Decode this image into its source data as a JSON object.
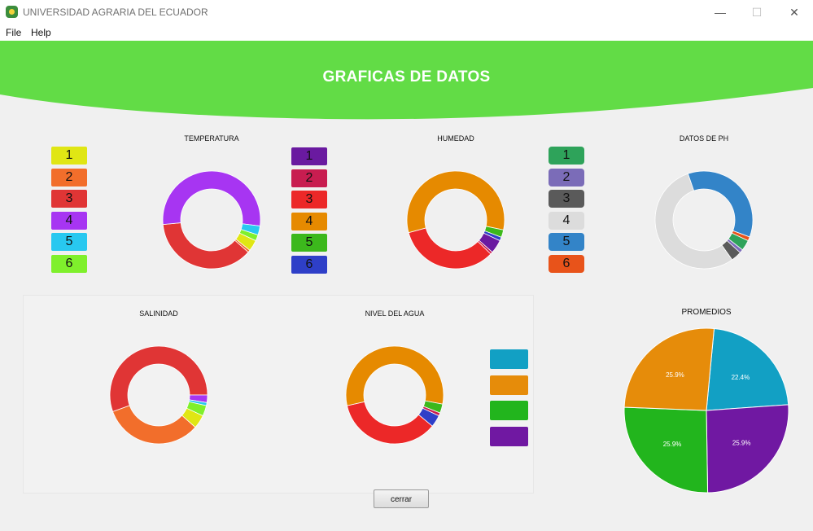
{
  "window": {
    "title": "UNIVERSIDAD AGRARIA DEL ECUADOR",
    "minimize": "—",
    "maximize": "☐",
    "close": "✕"
  },
  "menu": [
    "File",
    "Help"
  ],
  "header": {
    "title": "GRAFICAS DE DATOS",
    "accent": "#62dc46"
  },
  "charts": {
    "temperatura": {
      "title": "TEMPERATURA",
      "segments": [
        {
          "color": "#e0e614",
          "fraction": 0.037
        },
        {
          "color": "#f26e2b",
          "fraction": 0.008
        },
        {
          "color": "#e03535",
          "fraction": 0.37
        },
        {
          "color": "#a735f2",
          "fraction": 0.535
        },
        {
          "color": "#28c8f0",
          "fraction": 0.03
        },
        {
          "color": "#7ff02c",
          "fraction": 0.02
        }
      ]
    },
    "humedad": {
      "title": "HUMEDAD",
      "segments": [
        {
          "color": "#6a1aa0",
          "fraction": 0.045
        },
        {
          "color": "#c81d50",
          "fraction": 0.008
        },
        {
          "color": "#ec2828",
          "fraction": 0.335
        },
        {
          "color": "#e68a00",
          "fraction": 0.575
        },
        {
          "color": "#3cb81c",
          "fraction": 0.025
        },
        {
          "color": "#2e3fc8",
          "fraction": 0.012
        }
      ]
    },
    "ph": {
      "title": "DATOS DE PH",
      "segments": [
        {
          "color": "#2ea35a",
          "fraction": 0.035
        },
        {
          "color": "#7b6cb8",
          "fraction": 0.012
        },
        {
          "color": "#5a5a5a",
          "fraction": 0.035
        },
        {
          "color": "#dcdcdc",
          "fraction": 0.545
        },
        {
          "color": "#3384c8",
          "fraction": 0.36
        },
        {
          "color": "#e8531a",
          "fraction": 0.013
        }
      ]
    },
    "salinidad": {
      "title": "SALINIDAD",
      "segments": [
        {
          "color": "#e0e614",
          "fraction": 0.045
        },
        {
          "color": "#f26e2b",
          "fraction": 0.33
        },
        {
          "color": "#e03535",
          "fraction": 0.555
        },
        {
          "color": "#a735f2",
          "fraction": 0.025
        },
        {
          "color": "#28c8f0",
          "fraction": 0.01
        },
        {
          "color": "#7ff02c",
          "fraction": 0.035
        }
      ]
    },
    "nivel_agua": {
      "title": "NIVEL DEL AGUA",
      "segments": [
        {
          "color": "#2e3fc8",
          "fraction": 0.04
        },
        {
          "color": "#ec2828",
          "fraction": 0.355
        },
        {
          "color": "#e68a00",
          "fraction": 0.565
        },
        {
          "color": "#3cb81c",
          "fraction": 0.03
        },
        {
          "color": "#c81d50",
          "fraction": 0.01
        }
      ]
    }
  },
  "legends": {
    "temperatura": [
      {
        "label": "1",
        "color": "#e0e614"
      },
      {
        "label": "2",
        "color": "#f26e2b"
      },
      {
        "label": "3",
        "color": "#e03535"
      },
      {
        "label": "4",
        "color": "#a735f2"
      },
      {
        "label": "5",
        "color": "#28c8f0"
      },
      {
        "label": "6",
        "color": "#7ff02c"
      }
    ],
    "humedad": [
      {
        "label": "1",
        "color": "#6a1aa0"
      },
      {
        "label": "2",
        "color": "#c81d50"
      },
      {
        "label": "3",
        "color": "#ec2828"
      },
      {
        "label": "4",
        "color": "#e68a00"
      },
      {
        "label": "5",
        "color": "#3cb81c"
      },
      {
        "label": "6",
        "color": "#2e3fc8"
      }
    ],
    "ph": [
      {
        "label": "1",
        "color": "#2ea35a"
      },
      {
        "label": "2",
        "color": "#7b6cb8"
      },
      {
        "label": "3",
        "color": "#5a5a5a"
      },
      {
        "label": "4",
        "color": "#dcdcdc"
      },
      {
        "label": "5",
        "color": "#3384c8"
      },
      {
        "label": "6",
        "color": "#e8531a"
      }
    ],
    "promedios": [
      {
        "label": "",
        "color": "#12a0c4"
      },
      {
        "label": "",
        "color": "#e68c0a"
      },
      {
        "label": "",
        "color": "#22b51d"
      },
      {
        "label": "",
        "color": "#7018a2"
      }
    ]
  },
  "promedios": {
    "title": "PROMEDIOS",
    "slices": [
      {
        "label": "22.4%",
        "value": 22.4,
        "color": "#12a0c4"
      },
      {
        "label": "25.9%",
        "value": 25.9,
        "color": "#7018a2"
      },
      {
        "label": "25.9%",
        "value": 25.9,
        "color": "#22b51d"
      },
      {
        "label": "25.9%",
        "value": 25.9,
        "color": "#e68c0a"
      }
    ]
  },
  "chart_data": [
    {
      "type": "pie",
      "title": "TEMPERATURA",
      "categories": [
        "1",
        "2",
        "3",
        "4",
        "5",
        "6"
      ],
      "values": [
        3.7,
        0.8,
        37.0,
        53.5,
        3.0,
        2.0
      ]
    },
    {
      "type": "pie",
      "title": "HUMEDAD",
      "categories": [
        "1",
        "2",
        "3",
        "4",
        "5",
        "6"
      ],
      "values": [
        4.5,
        0.8,
        33.5,
        57.5,
        2.5,
        1.2
      ]
    },
    {
      "type": "pie",
      "title": "DATOS DE PH",
      "categories": [
        "1",
        "2",
        "3",
        "4",
        "5",
        "6"
      ],
      "values": [
        3.5,
        1.2,
        3.5,
        54.5,
        36.0,
        1.3
      ]
    },
    {
      "type": "pie",
      "title": "SALINIDAD",
      "categories": [
        "1",
        "2",
        "3",
        "4",
        "5",
        "6"
      ],
      "values": [
        4.5,
        33.0,
        55.5,
        2.5,
        1.0,
        3.5
      ]
    },
    {
      "type": "pie",
      "title": "NIVEL DEL AGUA",
      "values": [
        4.0,
        35.5,
        56.5,
        3.0,
        1.0
      ]
    },
    {
      "type": "pie",
      "title": "PROMEDIOS",
      "values": [
        22.4,
        25.9,
        25.9,
        25.9
      ]
    }
  ],
  "buttons": {
    "close_label": "cerrar"
  }
}
